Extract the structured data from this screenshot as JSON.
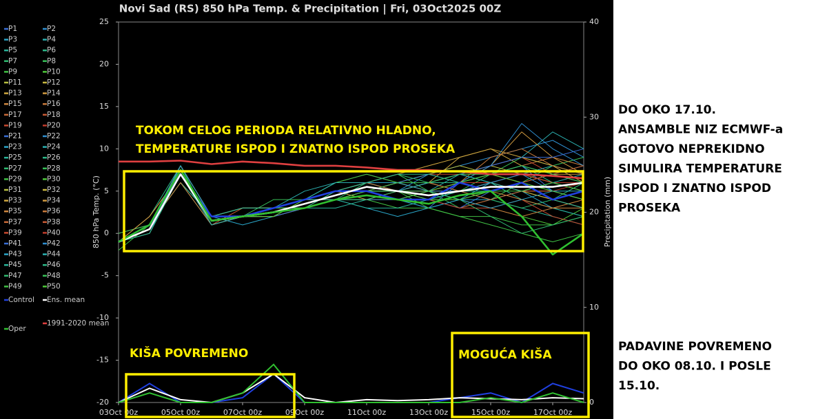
{
  "chart_data": {
    "type": "line",
    "title": "Novi Sad  (RS)  850 hPa Temp. & Precipitation | Fri, 03Oct2025 00Z",
    "y_label": "850 hPa Temp. (°C)",
    "y2_label": "Precipitation (mm)",
    "x": [
      0,
      1,
      2,
      3,
      4,
      5,
      6,
      7,
      8,
      9,
      10,
      11,
      12,
      13,
      14,
      15
    ],
    "xlim": [
      0,
      15
    ],
    "xticks": [
      {
        "value": 0,
        "label": "03Oct 00z"
      },
      {
        "value": 2,
        "label": "05Oct 00z"
      },
      {
        "value": 4,
        "label": "07Oct 00z"
      },
      {
        "value": 6,
        "label": "09Oct 00z"
      },
      {
        "value": 8,
        "label": "11Oct 00z"
      },
      {
        "value": 10,
        "label": "13Oct 00z"
      },
      {
        "value": 12,
        "label": "15Oct 00z"
      },
      {
        "value": 14,
        "label": "17Oct 00z"
      }
    ],
    "ylim": [
      -20,
      25
    ],
    "yticks": [
      -20,
      -15,
      -10,
      -5,
      0,
      5,
      10,
      15,
      20,
      25
    ],
    "y2lim": [
      0,
      40
    ],
    "y2ticks": [
      0,
      10,
      20,
      30,
      40
    ],
    "grid": false,
    "series": [
      {
        "name": "P1",
        "color": "#3a6fd8",
        "values": [
          -1,
          1,
          7,
          1,
          2,
          3,
          3,
          4,
          5,
          4,
          3,
          6,
          7,
          8,
          5,
          4
        ]
      },
      {
        "name": "P2",
        "color": "#2f8fd0",
        "values": [
          -1,
          0,
          8,
          2,
          2,
          3,
          4,
          5,
          6,
          5,
          7,
          8,
          9,
          10,
          11,
          9
        ]
      },
      {
        "name": "P3",
        "color": "#2aa5c8",
        "values": [
          -1,
          1,
          7,
          2,
          1,
          2,
          3,
          4,
          3,
          2,
          3,
          4,
          6,
          5,
          3,
          2
        ]
      },
      {
        "name": "P4",
        "color": "#2bb0b0",
        "values": [
          -1,
          1,
          6,
          1,
          2,
          3,
          5,
          6,
          7,
          6,
          5,
          7,
          8,
          9,
          12,
          10
        ]
      },
      {
        "name": "P5",
        "color": "#2ab59a",
        "values": [
          0,
          1,
          7,
          2,
          2,
          2,
          3,
          3,
          4,
          5,
          6,
          5,
          4,
          3,
          2,
          1
        ]
      },
      {
        "name": "P6",
        "color": "#2cb888",
        "values": [
          -1,
          2,
          8,
          1,
          2,
          3,
          4,
          5,
          5,
          6,
          5,
          4,
          5,
          6,
          7,
          8
        ]
      },
      {
        "name": "P7",
        "color": "#30bb70",
        "values": [
          -1,
          1,
          7,
          2,
          3,
          3,
          3,
          4,
          5,
          5,
          6,
          7,
          6,
          5,
          4,
          5
        ]
      },
      {
        "name": "P8",
        "color": "#38bf58",
        "values": [
          -1,
          1,
          7,
          1,
          2,
          4,
          4,
          5,
          6,
          7,
          5,
          3,
          4,
          6,
          8,
          9
        ]
      },
      {
        "name": "P9",
        "color": "#40c245",
        "values": [
          -2,
          1,
          7,
          2,
          2,
          3,
          3,
          4,
          4,
          3,
          3,
          2,
          1,
          0,
          -1,
          0
        ]
      },
      {
        "name": "P10",
        "color": "#4ec83a",
        "values": [
          -1,
          1,
          8,
          2,
          2,
          3,
          4,
          6,
          7,
          6,
          5,
          6,
          5,
          2,
          1,
          3
        ]
      },
      {
        "name": "P11",
        "color": "#b8c040",
        "values": [
          -1,
          1,
          7,
          2,
          2,
          3,
          4,
          4,
          5,
          6,
          7,
          8,
          7,
          6,
          5,
          4
        ]
      },
      {
        "name": "P12",
        "color": "#c8b840",
        "values": [
          -1,
          0,
          7,
          1,
          2,
          2,
          3,
          4,
          5,
          5,
          4,
          5,
          6,
          7,
          6,
          5
        ]
      },
      {
        "name": "P13",
        "color": "#d0a840",
        "values": [
          -1,
          1,
          6,
          2,
          2,
          3,
          3,
          5,
          6,
          5,
          6,
          9,
          10,
          8,
          7,
          6
        ]
      },
      {
        "name": "P14",
        "color": "#d09a40",
        "values": [
          0,
          1,
          7,
          2,
          3,
          3,
          4,
          5,
          4,
          4,
          5,
          6,
          8,
          12,
          9,
          7
        ]
      },
      {
        "name": "P15",
        "color": "#d08840",
        "values": [
          -1,
          1,
          7,
          1,
          2,
          3,
          3,
          4,
          5,
          6,
          5,
          4,
          3,
          2,
          3,
          4
        ]
      },
      {
        "name": "P16",
        "color": "#c87a3c",
        "values": [
          -1,
          2,
          7,
          2,
          2,
          2,
          3,
          4,
          5,
          5,
          6,
          6,
          7,
          8,
          9,
          8
        ]
      },
      {
        "name": "P17",
        "color": "#c86a38",
        "values": [
          -1,
          1,
          8,
          2,
          2,
          3,
          4,
          5,
          6,
          6,
          5,
          5,
          4,
          5,
          6,
          5
        ]
      },
      {
        "name": "P18",
        "color": "#c85a34",
        "values": [
          -1,
          1,
          7,
          1,
          3,
          3,
          4,
          4,
          5,
          4,
          4,
          3,
          4,
          5,
          4,
          3
        ]
      },
      {
        "name": "P19",
        "color": "#c84a30",
        "values": [
          -1,
          1,
          7,
          2,
          2,
          3,
          3,
          5,
          6,
          6,
          7,
          7,
          8,
          9,
          7,
          6
        ]
      },
      {
        "name": "P20",
        "color": "#c03c2c",
        "values": [
          -1,
          1,
          7,
          2,
          2,
          3,
          4,
          4,
          5,
          5,
          5,
          6,
          6,
          5,
          5,
          6
        ]
      },
      {
        "name": "P21",
        "color": "#3a6fd8",
        "values": [
          -1,
          1,
          7,
          2,
          2,
          2,
          3,
          4,
          4,
          5,
          4,
          3,
          5,
          6,
          5,
          4
        ]
      },
      {
        "name": "P22",
        "color": "#2f8fd0",
        "values": [
          -1,
          1,
          8,
          2,
          3,
          3,
          4,
          5,
          5,
          6,
          7,
          6,
          8,
          13,
          10,
          8
        ]
      },
      {
        "name": "P23",
        "color": "#2aa5c8",
        "values": [
          -1,
          0,
          7,
          1,
          2,
          3,
          3,
          4,
          5,
          4,
          3,
          4,
          4,
          5,
          6,
          5
        ]
      },
      {
        "name": "P24",
        "color": "#2bb0b0",
        "values": [
          -1,
          1,
          7,
          2,
          2,
          3,
          4,
          6,
          6,
          5,
          6,
          7,
          6,
          7,
          8,
          7
        ]
      },
      {
        "name": "P25",
        "color": "#2ab59a",
        "values": [
          -1,
          1,
          6,
          2,
          2,
          3,
          3,
          4,
          3,
          3,
          4,
          5,
          6,
          4,
          3,
          2
        ]
      },
      {
        "name": "P26",
        "color": "#2cb888",
        "values": [
          -1,
          1,
          7,
          1,
          2,
          2,
          4,
          5,
          5,
          5,
          6,
          6,
          7,
          8,
          6,
          5
        ]
      },
      {
        "name": "P27",
        "color": "#30bb70",
        "values": [
          -1,
          1,
          7,
          2,
          2,
          3,
          3,
          4,
          6,
          7,
          6,
          5,
          4,
          3,
          4,
          6
        ]
      },
      {
        "name": "P28",
        "color": "#38bf58",
        "values": [
          0,
          1,
          8,
          2,
          2,
          3,
          4,
          5,
          5,
          4,
          4,
          5,
          7,
          9,
          8,
          7
        ]
      },
      {
        "name": "P29",
        "color": "#40c245",
        "values": [
          -1,
          1,
          7,
          2,
          3,
          3,
          4,
          4,
          5,
          5,
          3,
          2,
          2,
          1,
          1,
          2
        ]
      },
      {
        "name": "P30",
        "color": "#4ec83a",
        "values": [
          -1,
          1,
          7,
          1,
          2,
          3,
          3,
          5,
          6,
          6,
          5,
          6,
          7,
          6,
          5,
          4
        ]
      },
      {
        "name": "P31",
        "color": "#b8c040",
        "values": [
          -1,
          1,
          7,
          2,
          2,
          3,
          4,
          4,
          4,
          5,
          6,
          7,
          8,
          7,
          6,
          5
        ]
      },
      {
        "name": "P32",
        "color": "#c8b840",
        "values": [
          -1,
          1,
          7,
          2,
          2,
          3,
          3,
          4,
          5,
          6,
          6,
          5,
          6,
          5,
          4,
          3
        ]
      },
      {
        "name": "P33",
        "color": "#d0a840",
        "values": [
          -1,
          1,
          7,
          2,
          2,
          2,
          4,
          5,
          6,
          7,
          8,
          9,
          10,
          9,
          8,
          6
        ]
      },
      {
        "name": "P34",
        "color": "#d09a40",
        "values": [
          -1,
          2,
          7,
          2,
          3,
          3,
          4,
          5,
          5,
          5,
          4,
          4,
          5,
          6,
          7,
          7
        ]
      },
      {
        "name": "P35",
        "color": "#d08840",
        "values": [
          -1,
          1,
          6,
          1,
          2,
          3,
          3,
          4,
          4,
          5,
          5,
          6,
          5,
          4,
          3,
          3
        ]
      },
      {
        "name": "P36",
        "color": "#c87a3c",
        "values": [
          -1,
          1,
          7,
          2,
          2,
          3,
          4,
          5,
          6,
          5,
          5,
          6,
          9,
          10,
          8,
          7
        ]
      },
      {
        "name": "P37",
        "color": "#c86a38",
        "values": [
          -1,
          1,
          7,
          2,
          2,
          3,
          3,
          4,
          5,
          5,
          6,
          5,
          4,
          5,
          5,
          4
        ]
      },
      {
        "name": "P38",
        "color": "#c85a34",
        "values": [
          -1,
          1,
          8,
          2,
          2,
          3,
          4,
          5,
          5,
          6,
          6,
          7,
          7,
          6,
          7,
          8
        ]
      },
      {
        "name": "P39",
        "color": "#c84a30",
        "values": [
          -1,
          1,
          7,
          1,
          2,
          3,
          3,
          4,
          5,
          4,
          4,
          3,
          3,
          4,
          2,
          1
        ]
      },
      {
        "name": "P40",
        "color": "#c03c2c",
        "values": [
          -1,
          1,
          7,
          2,
          2,
          3,
          4,
          5,
          6,
          6,
          5,
          6,
          6,
          7,
          6,
          6
        ]
      },
      {
        "name": "P41",
        "color": "#3a6fd8",
        "values": [
          -1,
          1,
          7,
          2,
          2,
          3,
          4,
          5,
          5,
          5,
          6,
          7,
          8,
          9,
          9,
          10
        ]
      },
      {
        "name": "P42",
        "color": "#2f8fd0",
        "values": [
          -1,
          1,
          7,
          2,
          2,
          3,
          3,
          4,
          4,
          4,
          5,
          5,
          6,
          7,
          5,
          4
        ]
      },
      {
        "name": "P43",
        "color": "#2aa5c8",
        "values": [
          -1,
          1,
          8,
          2,
          2,
          3,
          4,
          5,
          6,
          6,
          5,
          4,
          3,
          4,
          5,
          5
        ]
      },
      {
        "name": "P44",
        "color": "#2bb0b0",
        "values": [
          -1,
          1,
          7,
          1,
          2,
          3,
          4,
          4,
          5,
          5,
          6,
          7,
          6,
          5,
          6,
          7
        ]
      },
      {
        "name": "P45",
        "color": "#2ab59a",
        "values": [
          -1,
          1,
          7,
          2,
          3,
          3,
          3,
          5,
          5,
          4,
          4,
          5,
          5,
          6,
          4,
          3
        ]
      },
      {
        "name": "P46",
        "color": "#2cb888",
        "values": [
          -1,
          0,
          7,
          2,
          2,
          3,
          4,
          5,
          6,
          7,
          7,
          6,
          7,
          8,
          7,
          6
        ]
      },
      {
        "name": "P47",
        "color": "#30bb70",
        "values": [
          -1,
          1,
          7,
          2,
          2,
          3,
          3,
          4,
          4,
          5,
          5,
          4,
          2,
          0,
          1,
          2
        ]
      },
      {
        "name": "P48",
        "color": "#38bf58",
        "values": [
          -1,
          1,
          7,
          2,
          2,
          3,
          4,
          5,
          5,
          6,
          6,
          7,
          7,
          8,
          7,
          6
        ]
      },
      {
        "name": "P49",
        "color": "#40c245",
        "values": [
          -1,
          1,
          7,
          2,
          2,
          3,
          3,
          4,
          5,
          5,
          4,
          4,
          5,
          5,
          6,
          5
        ]
      },
      {
        "name": "P50",
        "color": "#4ec83a",
        "values": [
          -1,
          1,
          7,
          2,
          2,
          2,
          4,
          5,
          5,
          4,
          5,
          6,
          7,
          6,
          5,
          4
        ]
      },
      {
        "name": "Control",
        "color": "#2040e0",
        "values": [
          -1,
          1,
          7,
          2,
          2,
          3,
          4,
          5,
          5,
          4,
          4,
          6,
          5,
          6,
          4,
          5
        ],
        "precip": [
          0,
          2,
          0,
          0,
          0.5,
          3,
          0,
          0,
          0,
          0,
          0,
          0.5,
          1,
          0,
          2,
          1
        ]
      },
      {
        "name": "1991-2020 mean",
        "color": "#e04040",
        "values": [
          8.5,
          8.5,
          8.6,
          8.2,
          8.5,
          8.3,
          8,
          8,
          7.8,
          7.5,
          7.5,
          7.3,
          7,
          7,
          6.8,
          6.5
        ]
      },
      {
        "name": "Ens. mean",
        "color": "#ffffff",
        "values": [
          -1,
          0.5,
          7,
          1.5,
          2,
          2.5,
          3.5,
          4.5,
          5.5,
          5,
          4.5,
          5,
          5.5,
          5.5,
          5.5,
          6
        ],
        "precip": [
          0,
          1.5,
          0.3,
          0,
          1,
          3,
          0.5,
          0,
          0.3,
          0.2,
          0.3,
          0.5,
          0.4,
          0.3,
          0.5,
          0.4
        ]
      },
      {
        "name": "Oper",
        "color": "#30c030",
        "values": [
          -1,
          1,
          7.5,
          1.5,
          2,
          2.5,
          3,
          4,
          4.5,
          4,
          3.5,
          4.5,
          5,
          2,
          -2.5,
          0
        ],
        "precip": [
          0,
          1,
          0,
          0,
          1,
          4,
          0,
          0,
          0,
          0,
          0,
          0,
          0.5,
          0,
          1,
          0
        ]
      }
    ],
    "annotations": [
      "TOKOM CELOG PERIODA RELATIVNO HLADNO,",
      "TEMPERATURE ISPOD I ZNATNO ISPOD PROSEKA",
      "KIŠA POVREMENO",
      "MOGUĆA KIŠA"
    ]
  },
  "side_notes": [
    [
      "DO OKO 17.10.",
      "ANSAMBLE NIZ ECMWF-a",
      "GOTOVO NEPREKIDNO",
      "SIMULIRA TEMPERATURE",
      "ISPOD I ZNATNO ISPOD",
      "PROSEKA"
    ],
    [
      "PADAVINE POVREMENO",
      "DO OKO 08.10. I POSLE",
      "15.10."
    ]
  ]
}
